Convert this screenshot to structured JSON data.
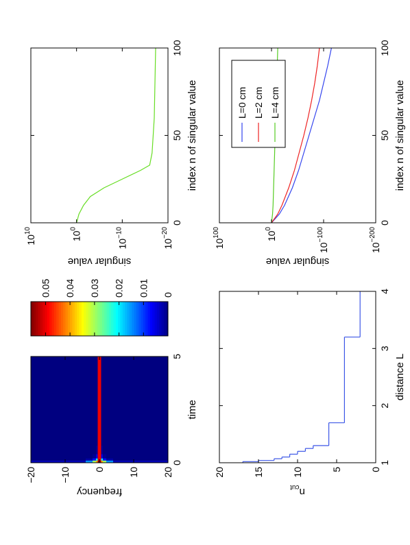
{
  "chart_data": [
    {
      "type": "heatmap",
      "xlabel": "time",
      "ylabel": "frequency",
      "x_edges": [
        0,
        0.1,
        0.2,
        0.4,
        0.8,
        5
      ],
      "y_edges": [
        -20,
        -4,
        -2,
        -1,
        -0.5,
        0.5,
        1,
        2,
        4,
        20
      ],
      "z": [
        [
          0.003,
          0,
          0,
          0,
          0
        ],
        [
          0.015,
          0.002,
          0,
          0,
          0
        ],
        [
          0.03,
          0.008,
          0.001,
          0,
          0
        ],
        [
          0.04,
          0.02,
          0.005,
          0.001,
          0
        ],
        [
          0.055,
          0.05,
          0.05,
          0.05,
          0.05
        ],
        [
          0.04,
          0.02,
          0.005,
          0.001,
          0
        ],
        [
          0.03,
          0.008,
          0.001,
          0,
          0
        ],
        [
          0.015,
          0.002,
          0,
          0,
          0
        ],
        [
          0.003,
          0,
          0,
          0,
          0
        ]
      ],
      "xlim": [
        0,
        5
      ],
      "xticks": [
        0,
        5
      ],
      "ylim": [
        -20,
        20
      ],
      "y_reverse": true,
      "yticks": [
        {
          "value": -20,
          "label": "−20"
        },
        {
          "value": -10,
          "label": "−10"
        },
        0,
        10,
        20
      ],
      "zlim": [
        0,
        0.056
      ],
      "zticks": [
        0,
        0.01,
        0.02,
        0.03,
        0.04,
        0.05
      ],
      "colormap": "jet"
    },
    {
      "type": "stairs",
      "xlabel": "distance L",
      "ylabel": "n",
      "ylabel_sub": "cut",
      "color": "#3a55e6",
      "x": [
        1,
        1.02,
        1.04,
        1.07,
        1.1,
        1.15,
        1.2,
        1.25,
        1.3,
        1.7,
        3.2,
        4
      ],
      "values": [
        17,
        15,
        13,
        12,
        11,
        10,
        9,
        8,
        6,
        4,
        2,
        2
      ],
      "xlim": [
        1,
        4
      ],
      "xticks": [
        1,
        2,
        3,
        4
      ],
      "ylim": [
        0,
        20
      ],
      "yticks": [
        0,
        5,
        10,
        15,
        20
      ]
    },
    {
      "type": "line",
      "xlabel": "index n of singular value",
      "ylabel": "singular value",
      "log_y": true,
      "color": "#66dd22",
      "x": [
        0,
        5,
        10,
        15,
        20,
        25,
        30,
        33,
        40,
        60,
        100
      ],
      "values": [
        1,
        0.3,
        0.03,
        0.001,
        1e-06,
        1e-10,
        1e-14,
        1e-16,
        3e-17,
        1e-17,
        5e-18
      ],
      "xlim": [
        0,
        100
      ],
      "xticks": [
        0,
        50,
        100
      ],
      "ylim": [
        1e-20,
        10000000000.0
      ],
      "yticks": [
        {
          "value": 10000000000.0,
          "label": "10",
          "exp": "10"
        },
        {
          "value": 1,
          "label": "10",
          "exp": "0"
        },
        {
          "value": 1e-10,
          "label": "10",
          "exp": "−10"
        },
        {
          "value": 1e-20,
          "label": "10",
          "exp": "−20"
        }
      ]
    },
    {
      "type": "line",
      "xlabel": "index n of singular value",
      "ylabel": "singular value",
      "log_y": true,
      "legend": "northeast",
      "x": [
        0,
        5,
        10,
        20,
        30,
        40,
        50,
        60,
        70,
        80,
        90,
        100
      ],
      "series": [
        {
          "name": "L=0 cm",
          "color": "#3344ee",
          "values": [
            1,
            1e-15,
            1e-25,
            1e-40,
            1e-52,
            1e-62,
            1e-72,
            1e-82,
            1e-92,
            1e-100,
            1e-108,
            1e-115
          ]
        },
        {
          "name": "L=2 cm",
          "color": "#ee2222",
          "values": [
            1,
            1e-12,
            1e-20,
            1e-33,
            1e-44,
            1e-53,
            1e-62,
            1e-70,
            1e-77,
            1e-83,
            1e-88,
            1e-92
          ]
        },
        {
          "name": "L=4 cm",
          "color": "#55cc22",
          "values": [
            1,
            0.01,
            0.001,
            0.0001,
            1e-05,
            1e-06,
            1e-07,
            1e-08,
            1e-09,
            1e-10,
            1e-11,
            1e-12
          ]
        }
      ],
      "xlim": [
        0,
        100
      ],
      "xticks": [
        0,
        50,
        100
      ],
      "ylim": [
        1e-200,
        1e+100
      ],
      "yticks": [
        {
          "value": 1e+100,
          "label": "10",
          "exp": "100"
        },
        {
          "value": 1,
          "label": "10",
          "exp": "0"
        },
        {
          "value": 1e-100,
          "label": "10",
          "exp": "−100"
        },
        {
          "value": 1e-200,
          "label": "10",
          "exp": "−200"
        }
      ]
    }
  ]
}
